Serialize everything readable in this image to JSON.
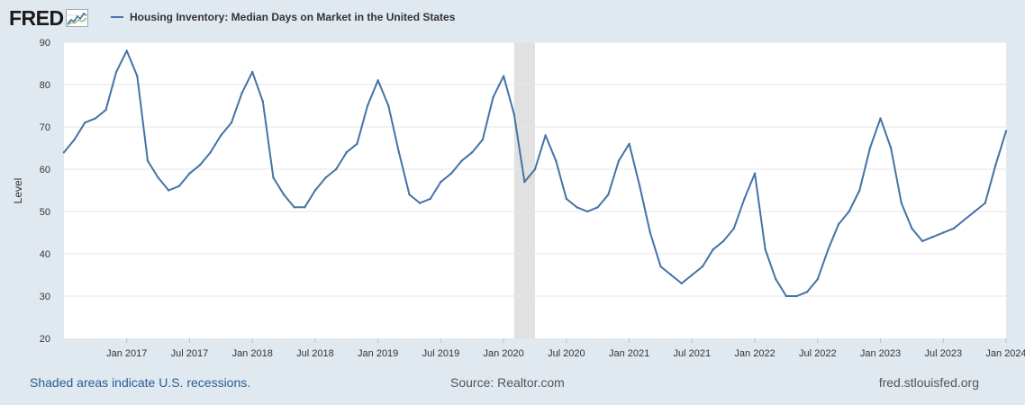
{
  "header": {
    "logo_text": "FRED",
    "legend_label": "Housing Inventory: Median Days on Market in the United States"
  },
  "footer": {
    "recession_note": "Shaded areas indicate U.S. recessions.",
    "source": "Source: Realtor.com",
    "site": "fred.stlouisfed.org"
  },
  "colors": {
    "background": "#e1e9f0",
    "plot_area": "#ffffff",
    "series": "#4572a7",
    "recession_shade": "#e1e1e1",
    "link": "#2a5c94"
  },
  "chart_data": {
    "type": "line",
    "title": "",
    "xlabel": "",
    "ylabel": "Level",
    "ylim": [
      20,
      90
    ],
    "yticks": [
      20,
      30,
      40,
      50,
      60,
      70,
      80,
      90
    ],
    "xlim": [
      "2016-07",
      "2024-01"
    ],
    "xticks": [
      {
        "date": "2017-01",
        "label": "Jan 2017"
      },
      {
        "date": "2017-07",
        "label": "Jul 2017"
      },
      {
        "date": "2018-01",
        "label": "Jan 2018"
      },
      {
        "date": "2018-07",
        "label": "Jul 2018"
      },
      {
        "date": "2019-01",
        "label": "Jan 2019"
      },
      {
        "date": "2019-07",
        "label": "Jul 2019"
      },
      {
        "date": "2020-01",
        "label": "Jan 2020"
      },
      {
        "date": "2020-07",
        "label": "Jul 2020"
      },
      {
        "date": "2021-01",
        "label": "Jan 2021"
      },
      {
        "date": "2021-07",
        "label": "Jul 2021"
      },
      {
        "date": "2022-01",
        "label": "Jan 2022"
      },
      {
        "date": "2022-07",
        "label": "Jul 2022"
      },
      {
        "date": "2023-01",
        "label": "Jan 2023"
      },
      {
        "date": "2023-07",
        "label": "Jul 2023"
      },
      {
        "date": "2024-01",
        "label": "Jan 2024"
      }
    ],
    "grid": true,
    "recessions": [
      {
        "start": "2020-02",
        "end": "2020-04"
      }
    ],
    "series": [
      {
        "name": "Housing Inventory: Median Days on Market in the United States",
        "x": [
          "2016-07",
          "2016-08",
          "2016-09",
          "2016-10",
          "2016-11",
          "2016-12",
          "2017-01",
          "2017-02",
          "2017-03",
          "2017-04",
          "2017-05",
          "2017-06",
          "2017-07",
          "2017-08",
          "2017-09",
          "2017-10",
          "2017-11",
          "2017-12",
          "2018-01",
          "2018-02",
          "2018-03",
          "2018-04",
          "2018-05",
          "2018-06",
          "2018-07",
          "2018-08",
          "2018-09",
          "2018-10",
          "2018-11",
          "2018-12",
          "2019-01",
          "2019-02",
          "2019-03",
          "2019-04",
          "2019-05",
          "2019-06",
          "2019-07",
          "2019-08",
          "2019-09",
          "2019-10",
          "2019-11",
          "2019-12",
          "2020-01",
          "2020-02",
          "2020-03",
          "2020-04",
          "2020-05",
          "2020-06",
          "2020-07",
          "2020-08",
          "2020-09",
          "2020-10",
          "2020-11",
          "2020-12",
          "2021-01",
          "2021-02",
          "2021-03",
          "2021-04",
          "2021-05",
          "2021-06",
          "2021-07",
          "2021-08",
          "2021-09",
          "2021-10",
          "2021-11",
          "2021-12",
          "2022-01",
          "2022-02",
          "2022-03",
          "2022-04",
          "2022-05",
          "2022-06",
          "2022-07",
          "2022-08",
          "2022-09",
          "2022-10",
          "2022-11",
          "2022-12",
          "2023-01",
          "2023-02",
          "2023-03",
          "2023-04",
          "2023-05",
          "2023-06",
          "2023-07",
          "2023-08",
          "2023-09",
          "2023-10",
          "2023-11",
          "2023-12",
          "2024-01"
        ],
        "values": [
          64,
          67,
          71,
          72,
          74,
          83,
          88,
          82,
          62,
          58,
          55,
          56,
          59,
          61,
          64,
          68,
          71,
          78,
          83,
          76,
          58,
          54,
          51,
          51,
          55,
          58,
          60,
          64,
          66,
          75,
          81,
          75,
          64,
          54,
          52,
          53,
          57,
          59,
          62,
          64,
          67,
          77,
          82,
          73,
          57,
          60,
          68,
          62,
          53,
          51,
          50,
          51,
          54,
          62,
          66,
          56,
          45,
          37,
          35,
          33,
          35,
          37,
          41,
          43,
          46,
          53,
          59,
          41,
          34,
          30,
          30,
          31,
          34,
          41,
          47,
          50,
          55,
          65,
          72,
          65,
          52,
          46,
          43,
          44,
          45,
          46,
          48,
          50,
          52,
          61,
          69
        ]
      }
    ]
  }
}
